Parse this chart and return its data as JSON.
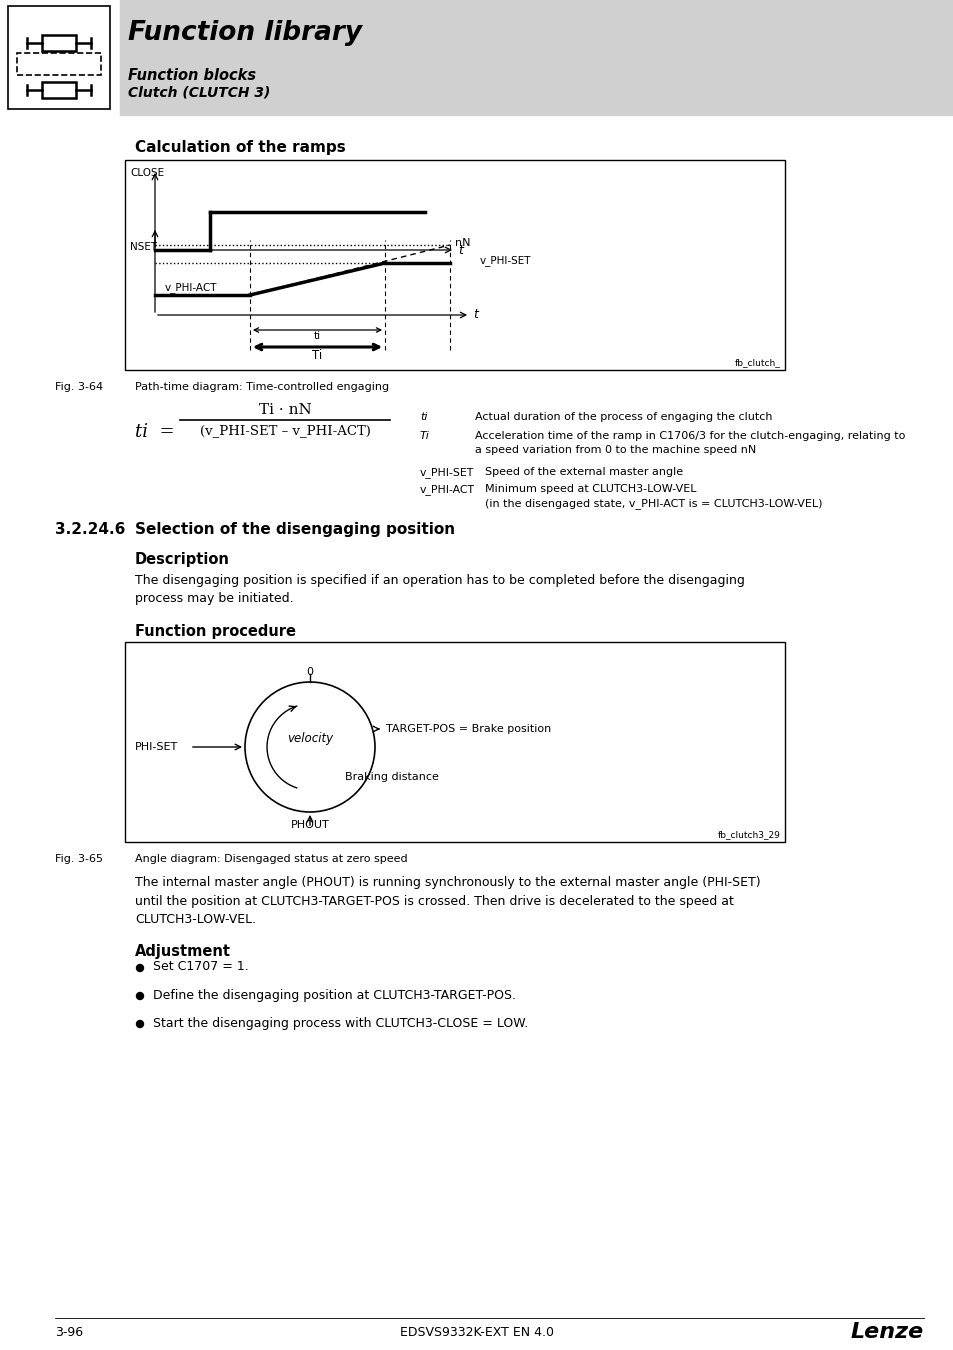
{
  "title": "Function library",
  "subtitle1": "Function blocks",
  "subtitle2": "Clutch (CLUTCH 3)",
  "header_bg": "#d0d0d0",
  "page_bg": "#ffffff",
  "section1_title": "Calculation of the ramps",
  "fig_label1": "Fig. 3-64",
  "fig_caption1": "Path-time diagram: Time-controlled engaging",
  "section2_num": "3.2.24.6",
  "section2_title": "Selection of the disengaging position",
  "desc_title": "Description",
  "desc_text": "The disengaging position is specified if an operation has to be completed before the disengaging\nprocess may be initiated.",
  "func_proc_title": "Function procedure",
  "fig_label2": "Fig. 3-65",
  "fig_caption2": "Angle diagram: Disengaged status at zero speed",
  "main_text": "The internal master angle (PHOUT) is running synchronously to the external master angle (PHI-SET)\nuntil the position at CLUTCH3-TARGET-POS is crossed. Then drive is decelerated to the speed at\nCLUTCH3-LOW-VEL.",
  "adj_title": "Adjustment",
  "adj_bullets": [
    "Set C1707 = 1.",
    "Define the disengaging position at CLUTCH3-TARGET-POS.",
    "Start the disengaging process with CLUTCH3-CLOSE = LOW."
  ],
  "page_num": "3-96",
  "footer_center": "EDSVS9332K-EXT EN 4.0",
  "footer_right": "Lenze"
}
